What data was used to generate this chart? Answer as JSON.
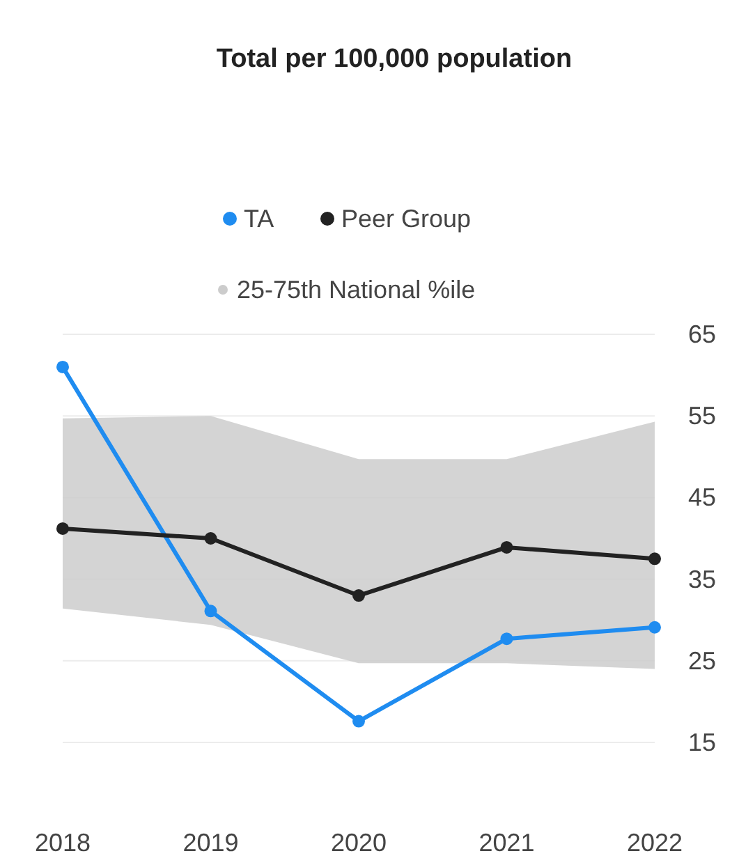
{
  "chart_data": {
    "type": "line",
    "title": "Total per 100,000 population",
    "categories": [
      "2018",
      "2019",
      "2020",
      "2021",
      "2022"
    ],
    "series": [
      {
        "name": "25-75th National %ile",
        "type": "area",
        "color": "#cccccc",
        "values": [
          null,
          null,
          null,
          null,
          null
        ],
        "lower": [
          31.4,
          29.4,
          24.7,
          24.7,
          24
        ],
        "upper": [
          54.7,
          55,
          49.7,
          49.7,
          54.3
        ]
      },
      {
        "name": "TA",
        "color": "#1f8cf0",
        "values": [
          61,
          31.1,
          17.6,
          27.7,
          29.1
        ]
      },
      {
        "name": "Peer Group",
        "color": "#222222",
        "values": [
          41.2,
          40,
          33,
          38.9,
          37.5
        ]
      }
    ],
    "ylim": [
      15,
      65
    ],
    "yticks": [
      15,
      25,
      35,
      45,
      55,
      65
    ],
    "grid": "y",
    "legend": "top",
    "marker": "circle",
    "line_style": "solid"
  }
}
